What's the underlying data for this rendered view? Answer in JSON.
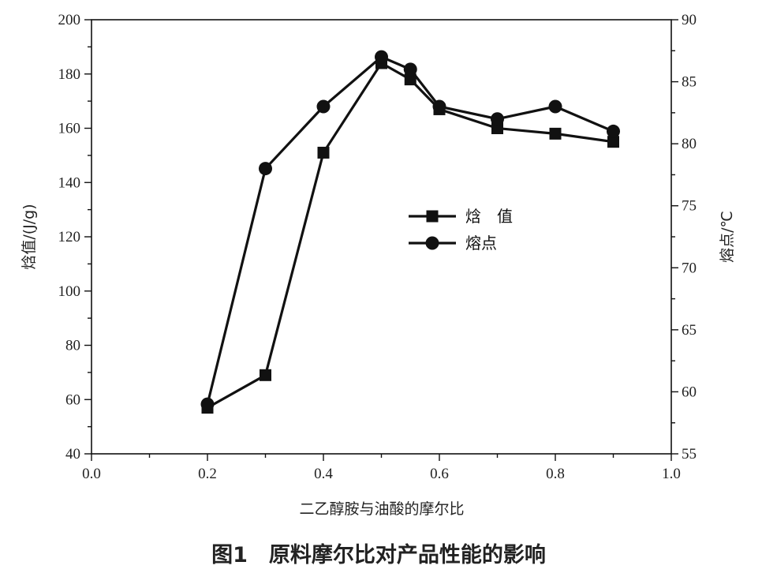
{
  "chart_data": {
    "type": "line",
    "xlabel": "二乙醇胺与油酸的摩尔比",
    "ylabel_left": "焓值/(J/g)",
    "ylabel_right": "熔点/℃",
    "caption": "图1　原料摩尔比对产品性能的影响",
    "xlim": [
      0.0,
      1.0
    ],
    "ylim_left": [
      40,
      200
    ],
    "ylim_right": [
      55,
      90
    ],
    "x_ticks": [
      "0.0",
      "0.2",
      "0.4",
      "0.6",
      "0.8",
      "1.0"
    ],
    "y_left_ticks": [
      "40",
      "60",
      "80",
      "100",
      "120",
      "140",
      "160",
      "180",
      "200"
    ],
    "y_right_ticks": [
      "55",
      "60",
      "65",
      "70",
      "75",
      "80",
      "85",
      "90"
    ],
    "grid": false,
    "legend_position": "center-right",
    "series": [
      {
        "name": "焓　值",
        "axis": "left",
        "marker": "square",
        "x": [
          0.2,
          0.3,
          0.4,
          0.5,
          0.55,
          0.6,
          0.7,
          0.8,
          0.9
        ],
        "y": [
          57,
          69,
          151,
          184,
          178,
          167,
          160,
          158,
          155
        ]
      },
      {
        "name": "熔点",
        "axis": "right",
        "marker": "circle",
        "x": [
          0.2,
          0.3,
          0.4,
          0.5,
          0.55,
          0.6,
          0.7,
          0.8,
          0.9
        ],
        "y": [
          59,
          78,
          83,
          87,
          86,
          83,
          82,
          83,
          81
        ]
      }
    ]
  }
}
